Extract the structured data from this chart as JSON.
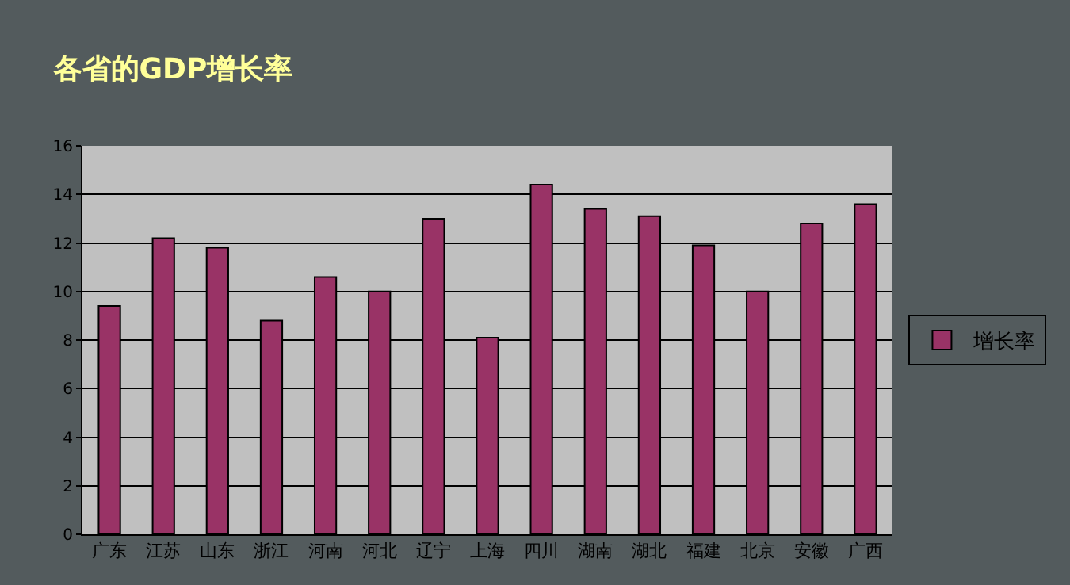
{
  "chart_data": {
    "type": "bar",
    "title": "各省的GDP增长率",
    "categories": [
      "广东",
      "江苏",
      "山东",
      "浙江",
      "河南",
      "河北",
      "辽宁",
      "上海",
      "四川",
      "湖南",
      "湖北",
      "福建",
      "北京",
      "安徽",
      "广西"
    ],
    "series": [
      {
        "name": "增长率",
        "color": "#993366",
        "values": [
          9.4,
          12.2,
          11.8,
          8.8,
          10.6,
          10.0,
          13.0,
          8.1,
          14.4,
          13.4,
          13.1,
          11.9,
          10.0,
          12.8,
          13.6
        ]
      }
    ],
    "ylim": [
      0,
      16
    ],
    "yticks": [
      0,
      2,
      4,
      6,
      8,
      10,
      12,
      14,
      16
    ],
    "grid": "y",
    "legend": "right"
  }
}
